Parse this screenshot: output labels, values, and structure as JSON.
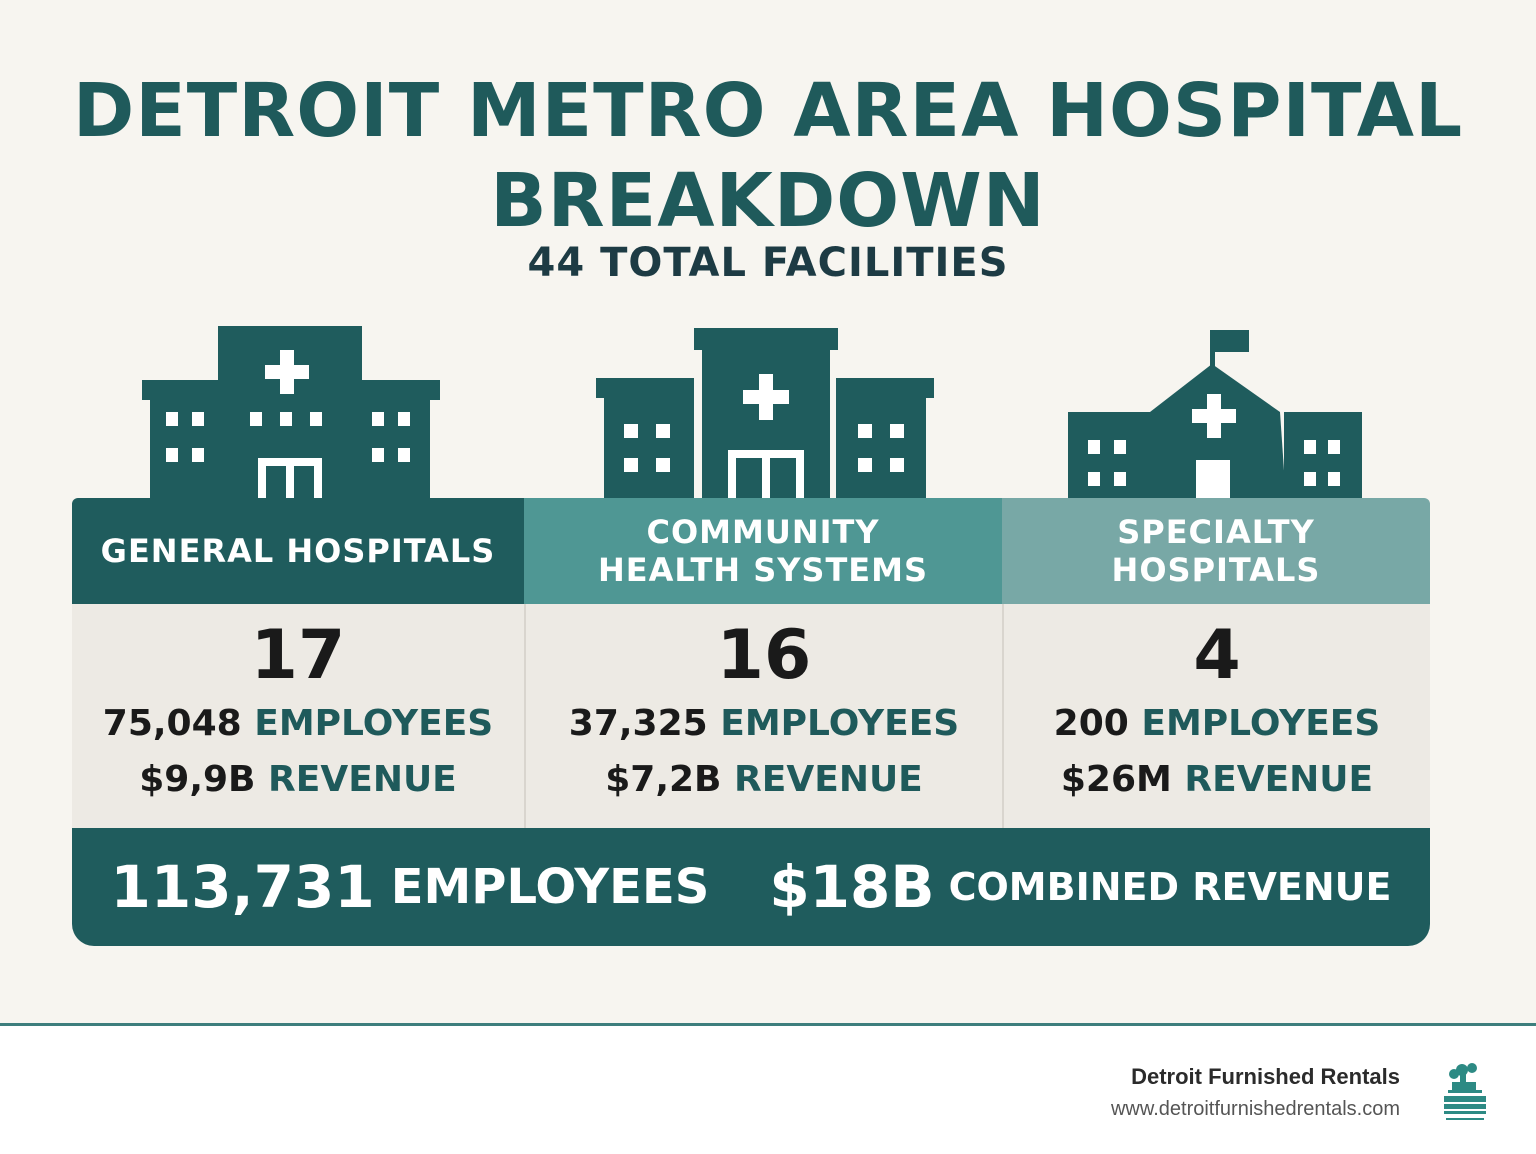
{
  "title": "DETROIT METRO AREA HOSPITAL BREAKDOWN",
  "title_line1": "DETROIT METRO AREA HOSPITAL",
  "title_line2": "BREAKDOWN",
  "subtitle": "44 TOTAL FACILITIES",
  "colors": {
    "primary": "#1f5c5d",
    "mid": "#4f9794",
    "light": "#78a8a6",
    "background": "#f7f5f0"
  },
  "categories": [
    {
      "name_line1": "GENERAL HOSPITALS",
      "name_line2": "",
      "icon": "hospital-building-icon",
      "count": "17",
      "employees": "75,048",
      "employees_label": "EMPLOYEES",
      "revenue": "$9,9B",
      "revenue_label": "REVENUE"
    },
    {
      "name_line1": "COMMUNITY",
      "name_line2": "HEALTH SYSTEMS",
      "icon": "community-health-building-icon",
      "count": "16",
      "employees": "37,325",
      "employees_label": "EMPLOYEES",
      "revenue": "$7,2B",
      "revenue_label": "REVENUE"
    },
    {
      "name_line1": "SPECIALTY",
      "name_line2": "HOSPITALS",
      "icon": "specialty-hospital-icon",
      "count": "4",
      "employees": "200",
      "employees_label": "EMPLOYEES",
      "revenue": "$26M",
      "revenue_label": "REVENUE"
    }
  ],
  "totals": {
    "employees": "113,731",
    "employees_label": "EMPLOYEES",
    "revenue": "$18B",
    "revenue_label": "COMBINED REVENUE"
  },
  "footer": {
    "brand": "Detroit Furnished Rentals",
    "url": "www.detroitfurnishedrentals.com",
    "logo_icon": "detroit-furnished-logo-icon"
  }
}
